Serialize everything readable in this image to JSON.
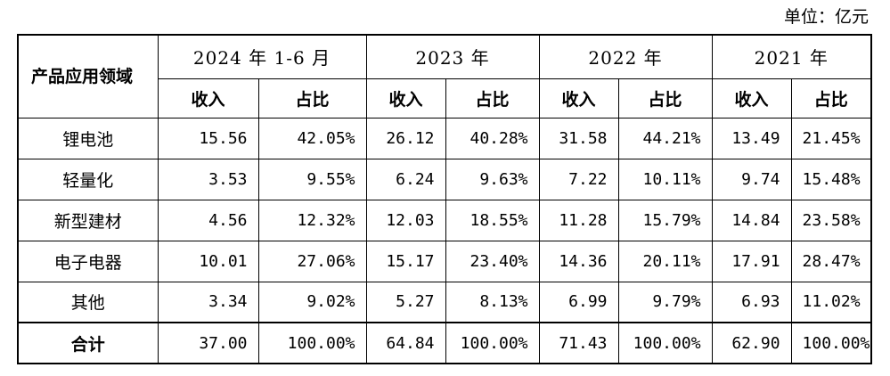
{
  "unit": "单位：亿元",
  "header": {
    "field": "产品应用领域",
    "periods": [
      "2024 年 1-6 月",
      "2023 年",
      "2022 年",
      "2021 年"
    ],
    "income": "收入",
    "share": "占比"
  },
  "rows": [
    {
      "label": "锂电池",
      "values": [
        "15.56",
        "42.05%",
        "26.12",
        "40.28%",
        "31.58",
        "44.21%",
        "13.49",
        "21.45%"
      ]
    },
    {
      "label": "轻量化",
      "values": [
        "3.53",
        "9.55%",
        "6.24",
        "9.63%",
        "7.22",
        "10.11%",
        "9.74",
        "15.48%"
      ]
    },
    {
      "label": "新型建材",
      "values": [
        "4.56",
        "12.32%",
        "12.03",
        "18.55%",
        "11.28",
        "15.79%",
        "14.84",
        "23.58%"
      ]
    },
    {
      "label": "电子电器",
      "values": [
        "10.01",
        "27.06%",
        "15.17",
        "23.40%",
        "14.36",
        "20.11%",
        "17.91",
        "28.47%"
      ]
    },
    {
      "label": "其他",
      "values": [
        "3.34",
        "9.02%",
        "5.27",
        "8.13%",
        "6.99",
        "9.79%",
        "6.93",
        "11.02%"
      ]
    }
  ],
  "total": {
    "label": "合计",
    "values": [
      "37.00",
      "100.00%",
      "64.84",
      "100.00%",
      "71.43",
      "100.00%",
      "62.90",
      "100.00%"
    ]
  }
}
